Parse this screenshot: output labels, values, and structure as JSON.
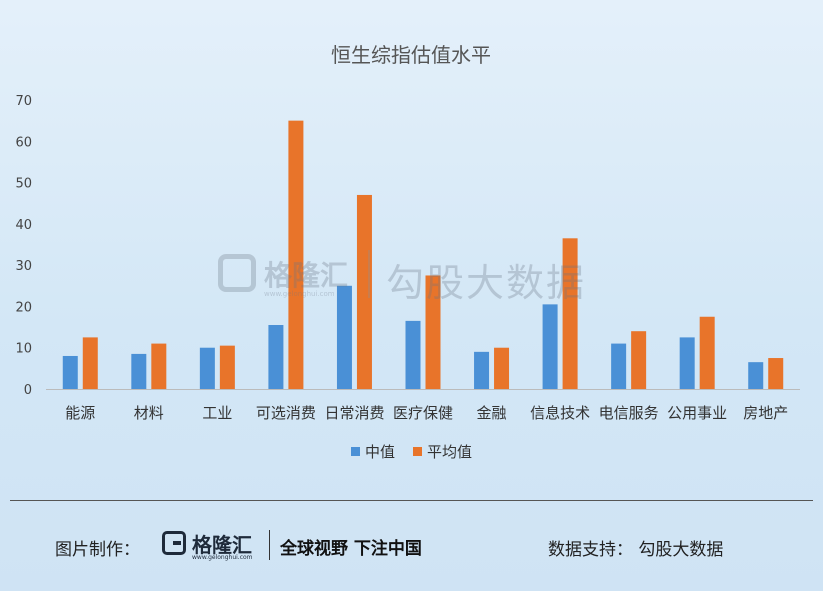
{
  "chart_data": {
    "type": "bar",
    "title": "恒生综指估值水平",
    "categories": [
      "能源",
      "材料",
      "工业",
      "可选消费",
      "日常消费",
      "医疗保健",
      "金融",
      "信息技术",
      "电信服务",
      "公用事业",
      "房地产"
    ],
    "series": [
      {
        "name": "中值",
        "color": "#4a90d6",
        "values": [
          8,
          8.5,
          10,
          15.5,
          25,
          16.5,
          9,
          20.5,
          11,
          12.5,
          6.5
        ]
      },
      {
        "name": "平均值",
        "color": "#e8742a",
        "values": [
          12.5,
          11,
          10.5,
          65,
          47,
          27.5,
          10,
          36.5,
          14,
          17.5,
          7.5
        ]
      }
    ],
    "ylim": [
      0,
      70
    ],
    "yticks": [
      0,
      10,
      20,
      30,
      40,
      50,
      60,
      70
    ],
    "ytick_labels": [
      "0",
      "10",
      "20",
      "30",
      "40",
      "50",
      "60",
      "70"
    ],
    "legend_position": "bottom",
    "grid": false
  },
  "watermark": {
    "logo_text": "格隆汇",
    "logo_sub": "www.gelonghui.com",
    "text": "勾股大数据"
  },
  "footer": {
    "credit_label": "图片制作：",
    "logo_text": "格隆汇",
    "logo_sub": "www.gelonghui.com",
    "slogan": "全球视野 下注中国",
    "support": "数据支持： 勾股大数据"
  }
}
